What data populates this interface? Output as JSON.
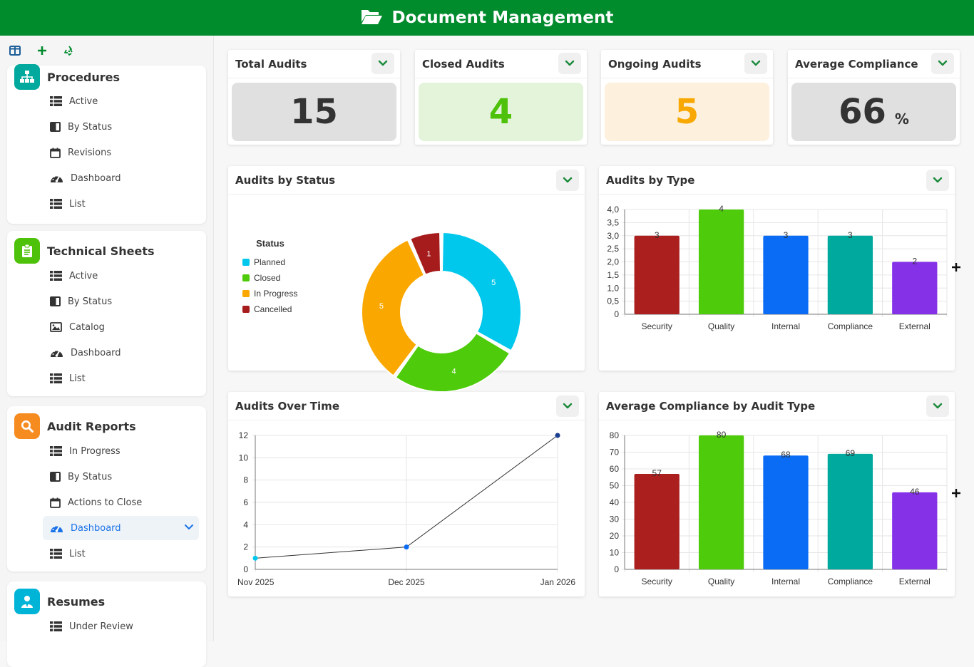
{
  "header": {
    "title": "Document Management"
  },
  "sidebar": {
    "tools": [
      {
        "icon": "layout-icon"
      },
      {
        "icon": "plus-icon"
      },
      {
        "icon": "recycle-icon"
      }
    ],
    "sections": [
      {
        "title": "Procedures",
        "icon": "sitemap-icon",
        "color": "#00a99d",
        "items": [
          {
            "label": "Active",
            "icon": "list-icon"
          },
          {
            "label": "By Status",
            "icon": "columns-icon"
          },
          {
            "label": "Revisions",
            "icon": "calendar-icon"
          },
          {
            "label": "Dashboard",
            "icon": "gauge-icon"
          },
          {
            "label": "List",
            "icon": "list-icon"
          }
        ]
      },
      {
        "title": "Technical Sheets",
        "icon": "clipboard-icon",
        "color": "#4ec10a",
        "items": [
          {
            "label": "Active",
            "icon": "list-icon"
          },
          {
            "label": "By Status",
            "icon": "columns-icon"
          },
          {
            "label": "Catalog",
            "icon": "image-icon"
          },
          {
            "label": "Dashboard",
            "icon": "gauge-icon"
          },
          {
            "label": "List",
            "icon": "list-icon"
          }
        ]
      },
      {
        "title": "Audit Reports",
        "icon": "search-icon",
        "color": "#f68b1f",
        "items": [
          {
            "label": "In Progress",
            "icon": "list-icon"
          },
          {
            "label": "By Status",
            "icon": "columns-icon"
          },
          {
            "label": "Actions to Close",
            "icon": "calendar-icon"
          },
          {
            "label": "Dashboard",
            "icon": "gauge-icon",
            "active": true
          },
          {
            "label": "List",
            "icon": "list-icon"
          }
        ]
      },
      {
        "title": "Resumes",
        "icon": "user-icon",
        "color": "#00b4d8",
        "items": [
          {
            "label": "Under Review",
            "icon": "list-icon"
          }
        ]
      }
    ]
  },
  "kpis": [
    {
      "title": "Total Audits",
      "value": "15",
      "unit": "",
      "bg": "#e0e0e0",
      "color": "#333333"
    },
    {
      "title": "Closed Audits",
      "value": "4",
      "unit": "",
      "bg": "#e3f4da",
      "color": "#4ec10a"
    },
    {
      "title": "Ongoing Audits",
      "value": "5",
      "unit": "",
      "bg": "#fdf0dc",
      "color": "#f8a800"
    },
    {
      "title": "Average Compliance",
      "value": "66",
      "unit": "%",
      "bg": "#e0e0e0",
      "color": "#333333"
    }
  ],
  "panels": {
    "status": {
      "title": "Audits by Status"
    },
    "type": {
      "title": "Audits by Type"
    },
    "time": {
      "title": "Audits Over Time"
    },
    "compliance": {
      "title": "Average Compliance by Audit Type"
    }
  },
  "chart_data": [
    {
      "type": "pie",
      "donut": true,
      "legend_title": "Status",
      "legend_position": "left",
      "categories": [
        "Planned",
        "Closed",
        "In Progress",
        "Cancelled"
      ],
      "values": [
        5,
        4,
        5,
        1
      ],
      "colors": [
        "#00c8ec",
        "#4ecb0a",
        "#faa800",
        "#a61c1c"
      ]
    },
    {
      "type": "bar",
      "categories": [
        "Security",
        "Quality",
        "Internal",
        "Compliance",
        "External"
      ],
      "values": [
        3,
        4,
        3,
        3,
        2
      ],
      "colors": [
        "#ab1f1f",
        "#4ecb0a",
        "#0a6cf5",
        "#00a99d",
        "#8431e8"
      ],
      "ylim": [
        0,
        4
      ],
      "yticks": [
        "0",
        "0,5",
        "1,0",
        "1,5",
        "2,0",
        "2,5",
        "3,0",
        "3,5",
        "4,0"
      ],
      "grid": true
    },
    {
      "type": "line",
      "x": [
        "Nov 2025",
        "Dec 2025",
        "Jan 2026"
      ],
      "values": [
        1,
        2,
        12
      ],
      "point_colors": [
        "#00c8ec",
        "#0a6cf5",
        "#1a3f8f"
      ],
      "ylim": [
        0,
        12
      ],
      "yticks": [
        "0",
        "2",
        "4",
        "6",
        "8",
        "10",
        "12"
      ],
      "grid": true
    },
    {
      "type": "bar",
      "categories": [
        "Security",
        "Quality",
        "Internal",
        "Compliance",
        "External"
      ],
      "values": [
        57,
        80,
        68,
        69,
        46
      ],
      "colors": [
        "#ab1f1f",
        "#4ecb0a",
        "#0a6cf5",
        "#00a99d",
        "#8431e8"
      ],
      "ylim": [
        0,
        80
      ],
      "yticks": [
        "0",
        "10",
        "20",
        "30",
        "40",
        "50",
        "60",
        "70",
        "80"
      ],
      "grid": true
    }
  ]
}
